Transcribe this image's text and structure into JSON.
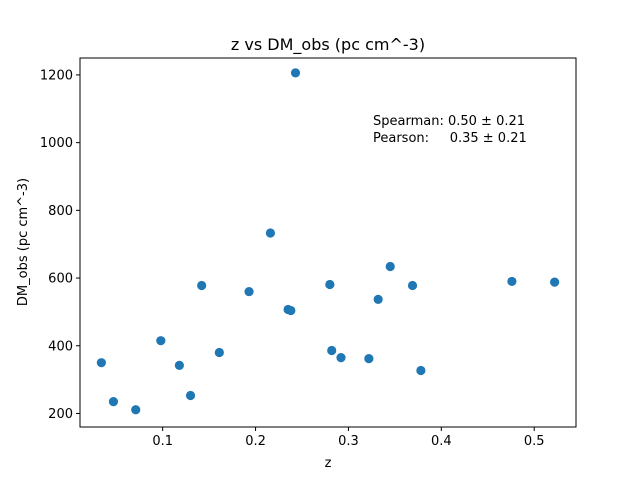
{
  "chart_data": {
    "type": "scatter",
    "title": "z vs DM_obs (pc cm^-3)",
    "xlabel": "z",
    "ylabel": "DM_obs (pc cm^-3)",
    "xlim": [
      0.011,
      0.545
    ],
    "ylim": [
      160,
      1250
    ],
    "xticks": [
      0.1,
      0.2,
      0.3,
      0.4,
      0.5
    ],
    "yticks": [
      200,
      400,
      600,
      800,
      1000,
      1200
    ],
    "xtick_labels": [
      "0.1",
      "0.2",
      "0.3",
      "0.4",
      "0.5"
    ],
    "ytick_labels": [
      "200",
      "400",
      "600",
      "800",
      "1000",
      "1200"
    ],
    "grid": false,
    "marker_color": "#1f77b4",
    "annotations": [
      "Spearman: 0.50 ± 0.21",
      "Pearson:     0.35 ± 0.21"
    ],
    "series": [
      {
        "points": [
          [
            0.243,
            1206
          ],
          [
            0.216,
            733
          ],
          [
            0.345,
            634
          ],
          [
            0.476,
            590
          ],
          [
            0.522,
            588
          ],
          [
            0.28,
            581
          ],
          [
            0.369,
            578
          ],
          [
            0.142,
            578
          ],
          [
            0.193,
            560
          ],
          [
            0.332,
            537
          ],
          [
            0.235,
            507
          ],
          [
            0.238,
            504
          ],
          [
            0.098,
            415
          ],
          [
            0.282,
            386
          ],
          [
            0.161,
            380
          ],
          [
            0.292,
            365
          ],
          [
            0.322,
            362
          ],
          [
            0.034,
            350
          ],
          [
            0.118,
            342
          ],
          [
            0.378,
            327
          ],
          [
            0.13,
            253
          ],
          [
            0.047,
            235
          ],
          [
            0.071,
            211
          ]
        ]
      }
    ]
  }
}
